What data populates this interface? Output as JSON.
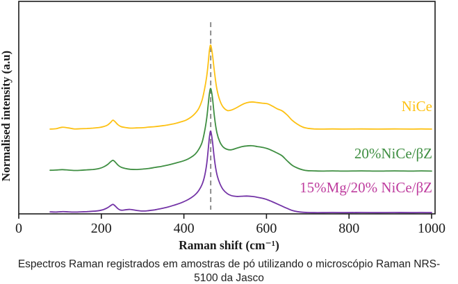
{
  "caption": {
    "line1": "Espectros Raman registrados em amostras de pó utilizando o microscópio Raman NRS-",
    "line2": "5100 da Jasco"
  },
  "colors": {
    "axis": "#1a1a1a",
    "dashed_guide": "#808080",
    "nice_gold": "#FDC113",
    "nice_bz_green": "#3E8E41",
    "mg_nice_bz_purple": "#7333A6",
    "mg_label_magenta": "#BE3C9E"
  },
  "chart_data": {
    "type": "line",
    "title": "",
    "xlabel": "Raman shift (cm⁻¹)",
    "ylabel": "Normalised intensity (a.u)",
    "xlim": [
      0,
      1000
    ],
    "ylim": [
      0,
      1
    ],
    "grid": false,
    "legend_position": "labels-on-curves-right",
    "xticks": [
      0,
      200,
      400,
      600,
      800,
      1000
    ],
    "yticks": [],
    "annotation": {
      "type": "vline",
      "style": "dashed",
      "x": 465,
      "color": "#808080"
    },
    "x": [
      76,
      90,
      105,
      120,
      135,
      150,
      165,
      180,
      195,
      205,
      215,
      222,
      228,
      233,
      240,
      248,
      258,
      270,
      285,
      300,
      315,
      330,
      345,
      360,
      375,
      390,
      405,
      418,
      428,
      436,
      444,
      450,
      455,
      459,
      462,
      465,
      469,
      474,
      480,
      487,
      495,
      505,
      515,
      528,
      540,
      552,
      565,
      578,
      590,
      602,
      614,
      626,
      638,
      650,
      662,
      675,
      688,
      700,
      715,
      735,
      760,
      790,
      830,
      870,
      910,
      950,
      975,
      1000
    ],
    "series": [
      {
        "name": "NiCe",
        "color": "#FDC113",
        "label_color": "#FDC113",
        "values": [
          0.418,
          0.42,
          0.427,
          0.424,
          0.419,
          0.42,
          0.421,
          0.423,
          0.426,
          0.43,
          0.438,
          0.45,
          0.462,
          0.455,
          0.44,
          0.43,
          0.426,
          0.423,
          0.424,
          0.425,
          0.428,
          0.43,
          0.434,
          0.438,
          0.444,
          0.452,
          0.462,
          0.478,
          0.497,
          0.52,
          0.56,
          0.615,
          0.675,
          0.745,
          0.808,
          0.832,
          0.788,
          0.7,
          0.615,
          0.56,
          0.527,
          0.51,
          0.512,
          0.524,
          0.538,
          0.548,
          0.552,
          0.549,
          0.546,
          0.543,
          0.532,
          0.518,
          0.508,
          0.488,
          0.462,
          0.442,
          0.428,
          0.422,
          0.419,
          0.418,
          0.419,
          0.418,
          0.419,
          0.418,
          0.419,
          0.418,
          0.419,
          0.418
        ]
      },
      {
        "name": "20%NiCe/βZ",
        "color": "#3E8E41",
        "label_color": "#3E8E41",
        "values": [
          0.215,
          0.216,
          0.218,
          0.216,
          0.214,
          0.215,
          0.217,
          0.219,
          0.224,
          0.231,
          0.243,
          0.256,
          0.264,
          0.257,
          0.241,
          0.23,
          0.224,
          0.22,
          0.219,
          0.221,
          0.224,
          0.229,
          0.234,
          0.24,
          0.248,
          0.256,
          0.266,
          0.28,
          0.296,
          0.318,
          0.352,
          0.405,
          0.468,
          0.54,
          0.595,
          0.618,
          0.575,
          0.478,
          0.4,
          0.355,
          0.33,
          0.318,
          0.316,
          0.324,
          0.331,
          0.335,
          0.336,
          0.332,
          0.328,
          0.322,
          0.312,
          0.3,
          0.286,
          0.262,
          0.24,
          0.226,
          0.217,
          0.213,
          0.212,
          0.211,
          0.212,
          0.211,
          0.212,
          0.211,
          0.212,
          0.211,
          0.212,
          0.211
        ]
      },
      {
        "name": "15%Mg/20% NiCe/βZ",
        "color": "#7333A6",
        "label_color": "#BE3C9E",
        "values": [
          0.01,
          0.009,
          0.011,
          0.01,
          0.009,
          0.01,
          0.011,
          0.013,
          0.016,
          0.021,
          0.03,
          0.04,
          0.047,
          0.04,
          0.026,
          0.018,
          0.02,
          0.022,
          0.017,
          0.014,
          0.016,
          0.02,
          0.026,
          0.033,
          0.042,
          0.052,
          0.065,
          0.08,
          0.096,
          0.115,
          0.145,
          0.185,
          0.243,
          0.318,
          0.38,
          0.408,
          0.36,
          0.268,
          0.195,
          0.15,
          0.12,
          0.1,
          0.09,
          0.086,
          0.087,
          0.088,
          0.086,
          0.082,
          0.077,
          0.07,
          0.06,
          0.049,
          0.038,
          0.027,
          0.017,
          0.011,
          0.008,
          0.007,
          0.006,
          0.006,
          0.007,
          0.006,
          0.007,
          0.006,
          0.007,
          0.006,
          0.007,
          0.006
        ]
      }
    ]
  }
}
